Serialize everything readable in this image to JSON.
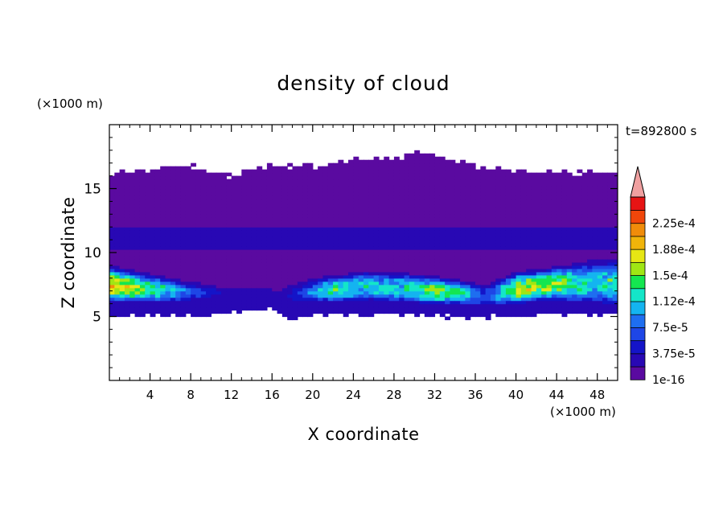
{
  "chart_data": {
    "type": "heatmap",
    "title": "density of cloud",
    "time_label": "t=892800 s",
    "xlabel": "X coordinate",
    "ylabel": "Z coordinate",
    "x_unit_label": "(×1000 m)",
    "y_unit_label": "(×1000 m)",
    "xlim": [
      0,
      50
    ],
    "ylim": [
      0,
      20
    ],
    "x_ticks": [
      4,
      8,
      12,
      16,
      20,
      24,
      28,
      32,
      36,
      40,
      44,
      48
    ],
    "x_tick_labels": [
      "4",
      "8",
      "12",
      "16",
      "20",
      "24",
      "28",
      "32",
      "36",
      "40",
      "44",
      "48"
    ],
    "y_ticks": [
      5,
      10,
      15
    ],
    "y_tick_labels": [
      "5",
      "10",
      "15"
    ],
    "colorbar": {
      "levels": [
        1e-16,
        1.875e-05,
        3.75e-05,
        5.625e-05,
        7.5e-05,
        9.375e-05,
        0.0001125,
        0.00013125,
        0.00015,
        0.00016875,
        0.0001875,
        0.00020625,
        0.000225,
        0.00024375
      ],
      "labels": [
        "1e-16",
        "3.75e-5",
        "7.5e-5",
        "1.12e-4",
        "1.5e-4",
        "1.88e-4",
        "2.25e-4"
      ],
      "label_levels": [
        1e-16,
        3.75e-05,
        7.5e-05,
        0.0001125,
        0.00015,
        0.0001875,
        0.000225
      ],
      "colors": [
        "#5a0aa0",
        "#2808b4",
        "#1414c8",
        "#1e46e6",
        "#1e6ef0",
        "#14b4f0",
        "#14e6c8",
        "#14e650",
        "#a0e614",
        "#e6e614",
        "#f0b40a",
        "#f08c0a",
        "#f0460a",
        "#e61414"
      ],
      "extend_color": "#f0a0a0"
    },
    "field": {
      "low_band": [
        [
          0,
          5.2,
          16.2
        ],
        [
          4,
          5.2,
          16.4
        ],
        [
          8,
          5.1,
          16.8
        ],
        [
          12,
          5.3,
          16.0
        ],
        [
          14,
          5.5,
          16.5
        ],
        [
          16,
          5.6,
          16.8
        ],
        [
          18,
          4.9,
          16.7
        ],
        [
          20,
          5.2,
          16.7
        ],
        [
          24,
          5.2,
          17.2
        ],
        [
          28,
          5.2,
          17.3
        ],
        [
          30,
          5.1,
          18.0
        ],
        [
          32,
          5.0,
          17.6
        ],
        [
          36,
          4.9,
          16.7
        ],
        [
          40,
          5.1,
          16.5
        ],
        [
          44,
          5.2,
          16.3
        ],
        [
          48,
          5.1,
          16.3
        ],
        [
          50,
          5.2,
          16.2
        ]
      ],
      "mid_layer": [
        10.2,
        12.0
      ],
      "cloud_core": [
        [
          0,
          6.0,
          9.0,
          0.00018
        ],
        [
          3,
          6.0,
          8.5,
          0.00015
        ],
        [
          6,
          6.0,
          8.0,
          0.00011
        ],
        [
          9,
          6.2,
          7.6,
          5.6e-05
        ],
        [
          12,
          6.5,
          7.2,
          3e-05
        ],
        [
          14,
          6.8,
          7.0,
          2e-05
        ],
        [
          16,
          6.5,
          6.8,
          2e-05
        ],
        [
          18,
          6.0,
          7.5,
          4e-05
        ],
        [
          20,
          6.0,
          8.0,
          9e-05
        ],
        [
          22,
          6.0,
          8.2,
          0.00013
        ],
        [
          25,
          6.2,
          8.6,
          0.00012
        ],
        [
          28,
          6.0,
          8.5,
          0.00011
        ],
        [
          32,
          5.9,
          8.2,
          0.00015
        ],
        [
          35,
          5.8,
          7.8,
          0.00012
        ],
        [
          37,
          5.6,
          7.5,
          6e-05
        ],
        [
          40,
          5.9,
          8.5,
          0.00016
        ],
        [
          43,
          6.2,
          8.8,
          0.00017
        ],
        [
          46,
          6.0,
          9.2,
          0.00013
        ],
        [
          48,
          5.8,
          9.5,
          0.00011
        ],
        [
          50,
          5.8,
          9.4,
          0.00014
        ]
      ]
    }
  }
}
